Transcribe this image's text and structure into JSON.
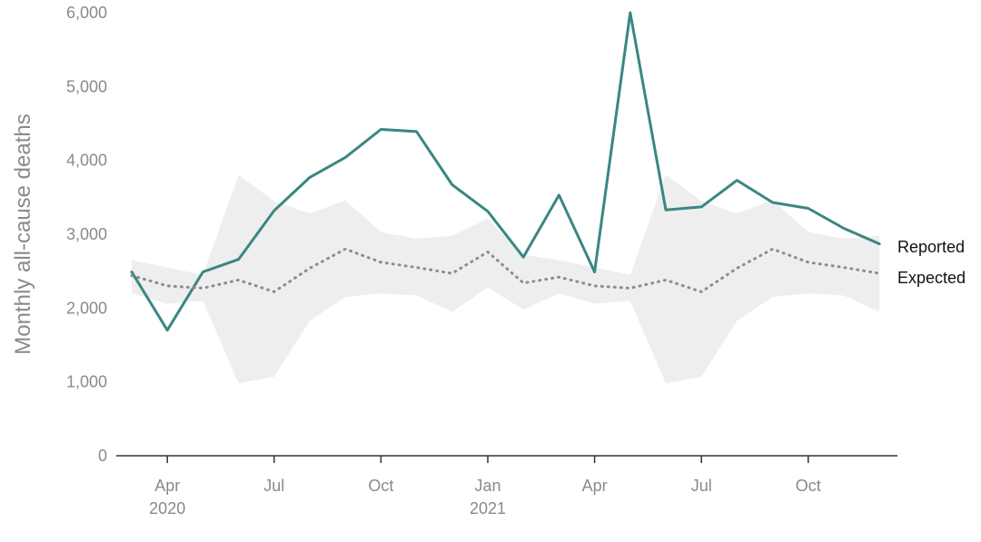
{
  "chart_data": {
    "type": "line",
    "title": "",
    "xlabel": "",
    "ylabel": "Monthly all-cause deaths",
    "ylim": [
      0,
      6000
    ],
    "yticks": [
      {
        "value": 0,
        "label": "0"
      },
      {
        "value": 1000,
        "label": "1,000"
      },
      {
        "value": 2000,
        "label": "2,000"
      },
      {
        "value": 3000,
        "label": "3,000"
      },
      {
        "value": 4000,
        "label": "4,000"
      },
      {
        "value": 5000,
        "label": "5,000"
      },
      {
        "value": 6000,
        "label": "6,000"
      }
    ],
    "x": [
      "2020-03",
      "2020-04",
      "2020-05",
      "2020-06",
      "2020-07",
      "2020-08",
      "2020-09",
      "2020-10",
      "2020-11",
      "2020-12",
      "2021-01",
      "2021-02",
      "2021-03",
      "2021-04",
      "2021-05",
      "2021-06",
      "2021-07",
      "2021-08",
      "2021-09",
      "2021-10",
      "2021-11",
      "2021-12"
    ],
    "xticks": [
      {
        "x": "2020-04",
        "label": "Apr",
        "sublabel": "2020"
      },
      {
        "x": "2020-07",
        "label": "Jul",
        "sublabel": ""
      },
      {
        "x": "2020-10",
        "label": "Oct",
        "sublabel": ""
      },
      {
        "x": "2021-01",
        "label": "Jan",
        "sublabel": "2021"
      },
      {
        "x": "2021-04",
        "label": "Apr",
        "sublabel": ""
      },
      {
        "x": "2021-07",
        "label": "Jul",
        "sublabel": ""
      },
      {
        "x": "2021-10",
        "label": "Oct",
        "sublabel": ""
      }
    ],
    "series": [
      {
        "name": "Reported",
        "style": "solid",
        "color": "#3a8782",
        "values": [
          2490,
          1700,
          2490,
          2660,
          3320,
          3770,
          4040,
          4420,
          4390,
          3670,
          3310,
          2690,
          3530,
          2490,
          6000,
          3330,
          3370,
          3730,
          3430,
          3350,
          3080,
          2870
        ]
      },
      {
        "name": "Expected",
        "style": "dotted",
        "color": "#8c8c8c",
        "values": [
          2440,
          2300,
          2270,
          2380,
          2220,
          2540,
          2800,
          2620,
          2550,
          2470,
          2760,
          2340,
          2420,
          2300,
          2270,
          2380,
          2220,
          2540,
          2800,
          2620,
          2550,
          2470
        ]
      }
    ],
    "band": {
      "color": "#eeeeee",
      "upper": [
        2650,
        2550,
        2450,
        3800,
        3450,
        3280,
        3460,
        3030,
        2940,
        2980,
        3210,
        2720,
        2650,
        2550,
        2450,
        3800,
        3450,
        3280,
        3460,
        3030,
        2940,
        2980
      ],
      "lower": [
        2200,
        2060,
        2100,
        980,
        1070,
        1830,
        2150,
        2200,
        2170,
        1950,
        2280,
        1980,
        2200,
        2060,
        2100,
        980,
        1070,
        1830,
        2150,
        2200,
        2170,
        1950
      ]
    },
    "legend": "right-end-labels",
    "grid": false
  }
}
